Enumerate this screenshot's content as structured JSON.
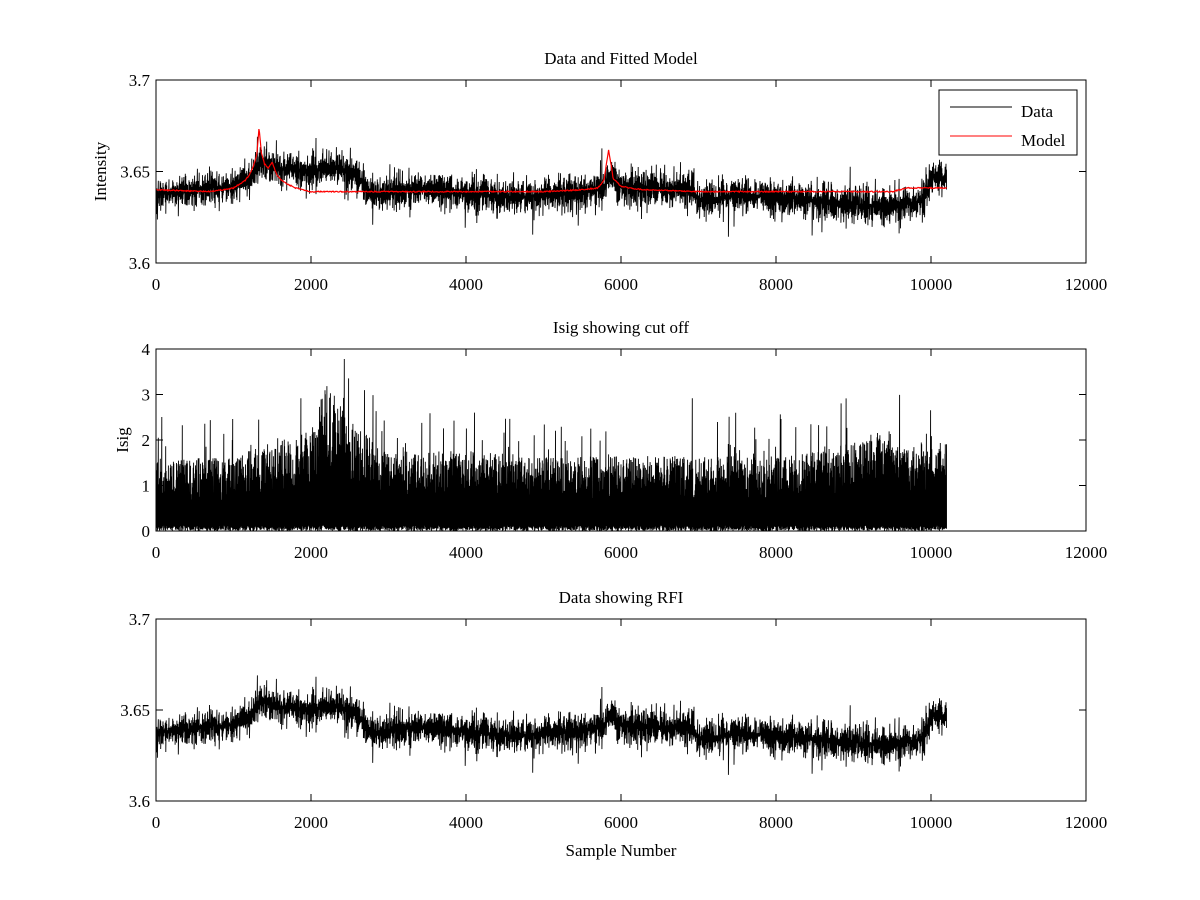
{
  "chart_data": [
    {
      "type": "line",
      "title": "Data and Fitted Model",
      "xlabel": "",
      "ylabel": "Intensity",
      "xlim": [
        0,
        12000
      ],
      "ylim": [
        3.6,
        3.7
      ],
      "xticks": [
        "0",
        "2000",
        "4000",
        "6000",
        "8000",
        "10000",
        "12000"
      ],
      "yticks": [
        "3.6",
        "3.65",
        "3.7"
      ],
      "grid": false,
      "legend": {
        "placement": "top-right",
        "entries": [
          "Data",
          "Model"
        ]
      },
      "series": [
        {
          "name": "Data",
          "color": "#000000",
          "style": "noisy",
          "x": [
            0,
            500,
            1000,
            1200,
            1350,
            1500,
            1800,
            2000,
            2300,
            2600,
            2750,
            3000,
            3500,
            4000,
            4500,
            5000,
            5500,
            5800,
            5850,
            6000,
            6500,
            6900,
            7000,
            7500,
            8000,
            8500,
            9000,
            9500,
            9900,
            10000,
            10200
          ],
          "y": [
            3.638,
            3.64,
            3.642,
            3.646,
            3.655,
            3.653,
            3.65,
            3.65,
            3.652,
            3.647,
            3.637,
            3.639,
            3.641,
            3.638,
            3.636,
            3.637,
            3.638,
            3.642,
            3.648,
            3.642,
            3.641,
            3.64,
            3.634,
            3.637,
            3.636,
            3.634,
            3.632,
            3.63,
            3.634,
            3.648,
            3.647
          ],
          "noise": 0.0085,
          "spike_max": 3.678,
          "spike_min": 3.609
        },
        {
          "name": "Model",
          "color": "#ff0000",
          "style": "smooth",
          "x": [
            0,
            700,
            1000,
            1150,
            1200,
            1250,
            1300,
            1330,
            1360,
            1400,
            1450,
            1500,
            1550,
            1600,
            1700,
            1800,
            1900,
            2000,
            3000,
            4000,
            5000,
            5500,
            5700,
            5780,
            5840,
            5900,
            6000,
            6100,
            6300,
            7000,
            8000,
            9000,
            9500,
            9700,
            10000,
            10200
          ],
          "y": [
            3.64,
            3.639,
            3.641,
            3.645,
            3.648,
            3.652,
            3.659,
            3.674,
            3.66,
            3.654,
            3.652,
            3.655,
            3.649,
            3.646,
            3.643,
            3.641,
            3.64,
            3.639,
            3.639,
            3.639,
            3.639,
            3.64,
            3.641,
            3.645,
            3.662,
            3.646,
            3.642,
            3.641,
            3.64,
            3.639,
            3.639,
            3.639,
            3.639,
            3.641,
            3.641,
            3.641
          ]
        }
      ]
    },
    {
      "type": "line",
      "title": "Isig showing cut off",
      "xlabel": "",
      "ylabel": "Isig",
      "xlim": [
        0,
        12000
      ],
      "ylim": [
        0,
        4
      ],
      "xticks": [
        "0",
        "2000",
        "4000",
        "6000",
        "8000",
        "10000",
        "12000"
      ],
      "yticks": [
        "0",
        "1",
        "2",
        "3",
        "4"
      ],
      "grid": false,
      "series": [
        {
          "color": "#000000",
          "style": "isig",
          "x": [
            0,
            1000,
            2000,
            2200,
            2500,
            3000,
            4000,
            5000,
            6000,
            7000,
            8000,
            8500,
            9000,
            9300,
            9700,
            10200
          ],
          "y": [
            0.7,
            0.75,
            1.0,
            1.5,
            1.1,
            0.8,
            0.8,
            0.75,
            0.75,
            0.75,
            0.75,
            0.8,
            0.9,
            1.0,
            0.85,
            0.9
          ],
          "max": 3.78
        }
      ]
    },
    {
      "type": "line",
      "title": "Data showing RFI",
      "xlabel": "Sample Number",
      "ylabel": "",
      "xlim": [
        0,
        12000
      ],
      "ylim": [
        3.6,
        3.7
      ],
      "xticks": [
        "0",
        "2000",
        "4000",
        "6000",
        "8000",
        "10000",
        "12000"
      ],
      "yticks": [
        "3.6",
        "3.65",
        "3.7"
      ],
      "grid": false,
      "series": [
        {
          "color": "#000000",
          "style": "noisy",
          "x": [
            0,
            500,
            1000,
            1200,
            1350,
            1500,
            1800,
            2000,
            2300,
            2600,
            2750,
            3000,
            3500,
            4000,
            4500,
            5000,
            5500,
            5800,
            5850,
            6000,
            6500,
            6900,
            7000,
            7500,
            8000,
            8500,
            9000,
            9500,
            9900,
            10000,
            10200
          ],
          "y": [
            3.638,
            3.64,
            3.642,
            3.646,
            3.655,
            3.653,
            3.65,
            3.65,
            3.652,
            3.647,
            3.637,
            3.639,
            3.641,
            3.638,
            3.636,
            3.637,
            3.638,
            3.642,
            3.648,
            3.642,
            3.641,
            3.64,
            3.634,
            3.637,
            3.636,
            3.634,
            3.632,
            3.63,
            3.634,
            3.648,
            3.647
          ],
          "noise": 0.0085,
          "spike_max": 3.678,
          "spike_min": 3.609
        }
      ]
    }
  ]
}
